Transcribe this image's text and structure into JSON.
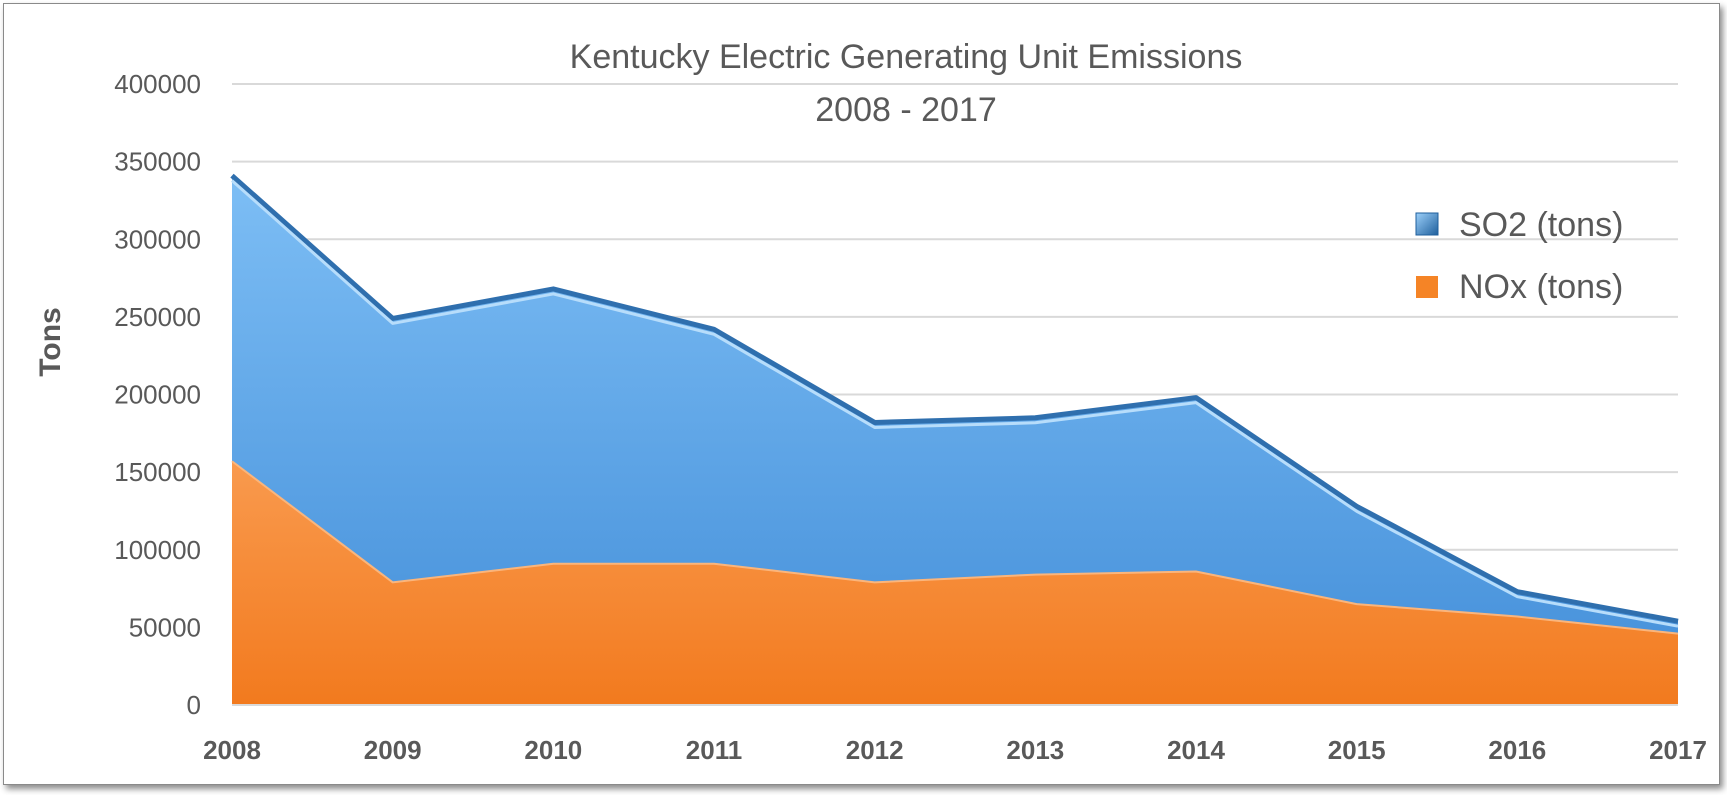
{
  "chart_data": {
    "type": "area",
    "title": [
      "Kentucky Electric Generating Unit Emissions",
      "2008 - 2017"
    ],
    "xlabel": "",
    "ylabel": "Tons",
    "categories": [
      "2008",
      "2009",
      "2010",
      "2011",
      "2012",
      "2013",
      "2014",
      "2015",
      "2016",
      "2017"
    ],
    "stacked": true,
    "ylim": [
      0,
      400000
    ],
    "yticks": [
      0,
      50000,
      100000,
      150000,
      200000,
      250000,
      300000,
      350000,
      400000
    ],
    "ytick_labels": [
      "0",
      "50000",
      "100000",
      "150000",
      "200000",
      "250000",
      "300000",
      "350000",
      "400000"
    ],
    "grid": true,
    "legend_position": "right",
    "series": [
      {
        "name": "NOx (tons)",
        "color": "#f58426",
        "values": [
          157000,
          79000,
          91000,
          91000,
          79000,
          84000,
          86000,
          65000,
          57000,
          46000
        ]
      },
      {
        "name": "SO2 (tons)",
        "color": "#5aa7ea",
        "values": [
          184000,
          170000,
          177000,
          151000,
          103000,
          101000,
          112000,
          63000,
          16000,
          8000
        ]
      }
    ]
  }
}
